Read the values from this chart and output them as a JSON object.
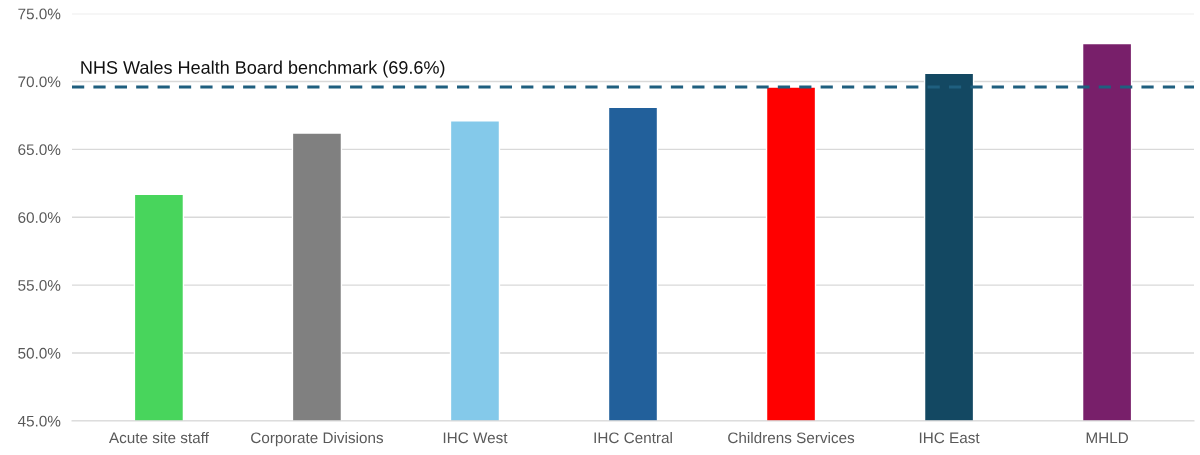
{
  "chart_data": {
    "type": "bar",
    "categories": [
      "Acute site staff",
      "Corporate Divisions",
      "IHC West",
      "IHC Central",
      "Childrens Services",
      "IHC East",
      "MHLD"
    ],
    "values": [
      61.7,
      66.2,
      67.1,
      68.1,
      69.6,
      70.6,
      72.8
    ],
    "colors": [
      "#48d55c",
      "#808080",
      "#84c9ea",
      "#22609b",
      "#ff0000",
      "#134862",
      "#781f6a"
    ],
    "ylim": [
      45,
      75
    ],
    "yticks": [
      {
        "value": 45,
        "label": "45.0%"
      },
      {
        "value": 50,
        "label": "50.0%"
      },
      {
        "value": 55,
        "label": "55.0%"
      },
      {
        "value": 60,
        "label": "60.0%"
      },
      {
        "value": 65,
        "label": "65.0%"
      },
      {
        "value": 70,
        "label": "70.0%"
      },
      {
        "value": 75,
        "label": "75.0%"
      }
    ],
    "grid": "y",
    "ref_lines": [
      {
        "axis": "y",
        "value": 69.6,
        "label": "NHS Wales Health Board benchmark (69.6%)",
        "color": "#1f5f7f",
        "line_style": "dashed"
      }
    ]
  }
}
